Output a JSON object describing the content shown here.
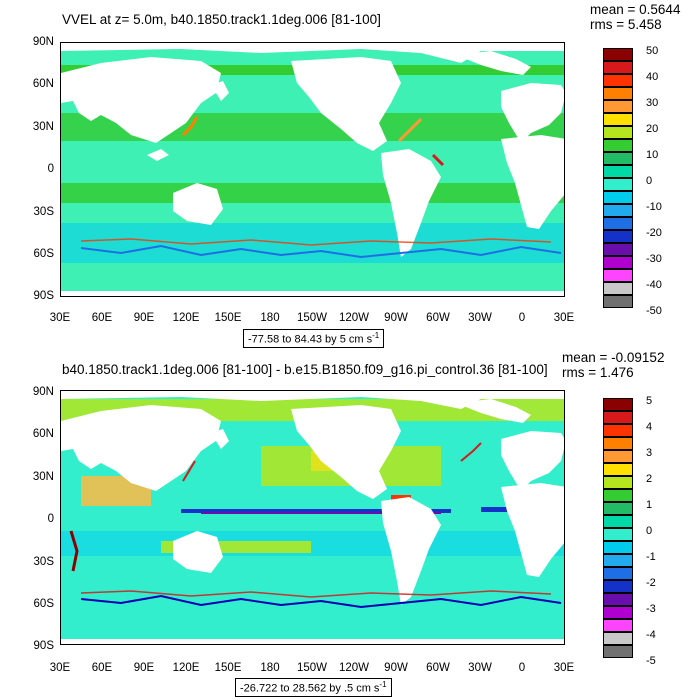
{
  "panels": [
    {
      "title": "VVEL at z=   5.0m, b40.1850.track1.1deg.006 [81-100]",
      "stats": {
        "mean": "mean = 0.5644",
        "rms": "rms = 5.458"
      },
      "range_text": "-77.58 to 84.43 by 5 cm s",
      "range_sup": "-1",
      "colorbar_labels": [
        "50",
        "40",
        "30",
        "20",
        "10",
        "0",
        "-10",
        "-20",
        "-30",
        "-40",
        "-50"
      ]
    },
    {
      "title": "b40.1850.track1.1deg.006 [81-100] - b.e15.B1850.f09_g16.pi_control.36 [81-100]",
      "stats": {
        "mean": "mean = -0.09152",
        "rms": "rms = 1.476"
      },
      "range_text": "-26.722 to 28.562 by .5 cm s",
      "range_sup": "-1",
      "colorbar_labels": [
        "5",
        "4",
        "3",
        "2",
        "1",
        "0",
        "-1",
        "-2",
        "-3",
        "-4",
        "-5"
      ]
    }
  ],
  "lat_labels": [
    "90N",
    "60N",
    "30N",
    "0",
    "30S",
    "60S",
    "90S"
  ],
  "lon_labels": [
    "30E",
    "60E",
    "90E",
    "120E",
    "150E",
    "180",
    "150W",
    "120W",
    "90W",
    "60W",
    "30W",
    "0",
    "30E"
  ],
  "colorbar_colors": [
    "#8b0000",
    "#d7191c",
    "#ff3300",
    "#ff7f00",
    "#ff9933",
    "#ffbb44",
    "#ffe000",
    "#b5e61d",
    "#33cc33",
    "#22bb66",
    "#00d9a6",
    "#33eecc",
    "#00ccee",
    "#22aaee",
    "#1e6fe6",
    "#1432c8",
    "#0000b4",
    "#6a0dad",
    "#b000d0",
    "#ff44ff",
    "#c8c8c8",
    "#707070"
  ],
  "colors": {
    "ocean_main": "#3ef0b4",
    "ocean_band": "#33cc33",
    "land": "#ffffff"
  }
}
